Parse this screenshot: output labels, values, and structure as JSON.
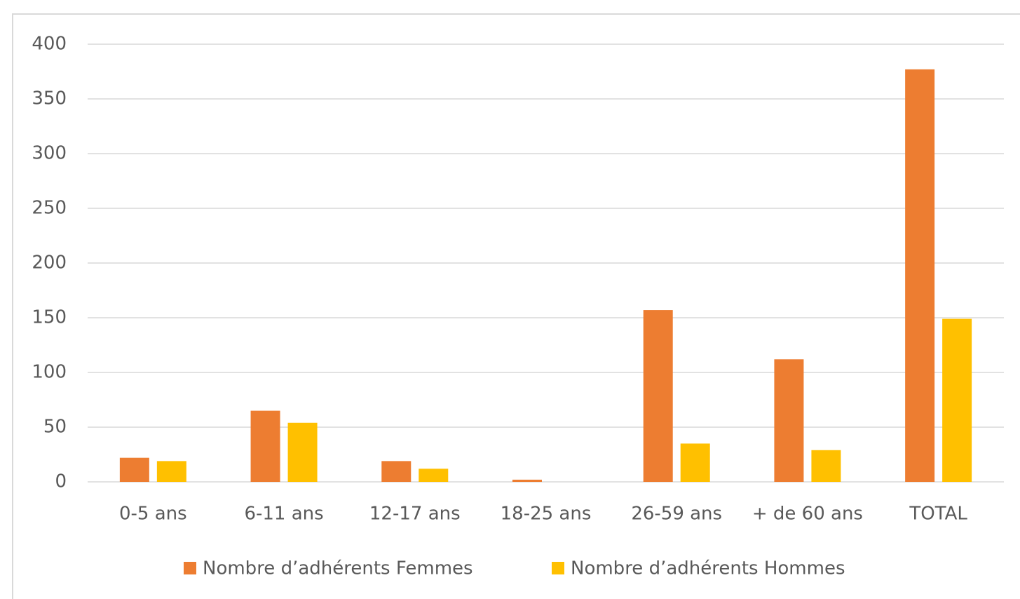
{
  "chart_data": {
    "type": "bar",
    "categories": [
      "0-5 ans",
      "6-11 ans",
      "12-17 ans",
      "18-25 ans",
      "26-59 ans",
      "+ de 60 ans",
      "TOTAL"
    ],
    "series": [
      {
        "name": "Nombre d’adhérents Femmes",
        "color": "#ed7d31",
        "values": [
          22,
          65,
          19,
          2,
          157,
          112,
          377
        ]
      },
      {
        "name": "Nombre d’adhérents Hommes",
        "color": "#ffc000",
        "values": [
          19,
          54,
          12,
          0,
          35,
          29,
          149
        ]
      }
    ],
    "ylim": [
      0,
      400
    ],
    "yticks": [
      0,
      50,
      100,
      150,
      200,
      250,
      300,
      350,
      400
    ],
    "grid": true,
    "legend": "bottom"
  }
}
